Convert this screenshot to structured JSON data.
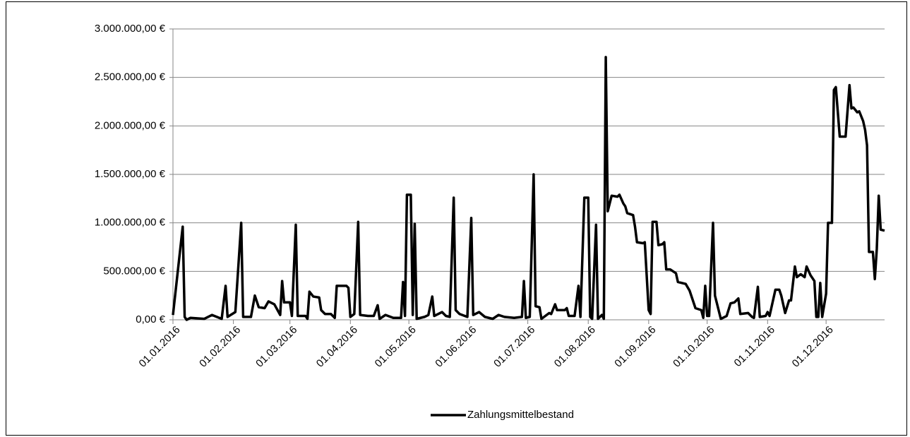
{
  "chart_data": {
    "type": "line",
    "x": [
      "01.01.2016",
      "06.01.2016",
      "07.01.2016",
      "08.01.2016",
      "10.01.2016",
      "17.01.2016",
      "21.01.2016",
      "26.01.2016",
      "28.01.2016",
      "29.01.2016",
      "02.02.2016",
      "05.02.2016",
      "06.02.2016",
      "10.02.2016",
      "12.02.2016",
      "14.02.2016",
      "17.02.2016",
      "19.02.2016",
      "22.02.2016",
      "25.02.2016",
      "26.02.2016",
      "27.02.2016",
      "01.03.2016",
      "02.03.2016",
      "04.03.2016",
      "05.03.2016",
      "09.03.2016",
      "10.03.2016",
      "11.03.2016",
      "13.03.2016",
      "16.03.2016",
      "17.03.2016",
      "19.03.2016",
      "22.03.2016",
      "24.03.2016",
      "25.03.2016",
      "30.03.2016",
      "31.03.2016",
      "01.04.2016",
      "03.04.2016",
      "05.04.2016",
      "06.04.2016",
      "10.04.2016",
      "13.04.2016",
      "15.04.2016",
      "16.04.2016",
      "19.04.2016",
      "23.04.2016",
      "27.04.2016",
      "28.04.2016",
      "29.04.2016",
      "30.04.2016",
      "02.05.2016",
      "03.05.2016",
      "04.05.2016",
      "05.05.2016",
      "09.05.2016",
      "11.05.2016",
      "13.05.2016",
      "14.05.2016",
      "18.05.2016",
      "20.05.2016",
      "22.05.2016",
      "24.05.2016",
      "25.05.2016",
      "27.05.2016",
      "31.05.2016",
      "02.06.2016",
      "03.06.2016",
      "06.06.2016",
      "09.06.2016",
      "13.06.2016",
      "16.06.2016",
      "19.06.2016",
      "24.06.2016",
      "28.06.2016",
      "29.06.2016",
      "30.06.2016",
      "02.07.2016",
      "04.07.2016",
      "05.07.2016",
      "07.07.2016",
      "08.07.2016",
      "12.07.2016",
      "13.07.2016",
      "15.07.2016",
      "16.07.2016",
      "20.07.2016",
      "21.07.2016",
      "22.07.2016",
      "25.07.2016",
      "27.07.2016",
      "28.07.2016",
      "30.07.2016",
      "01.08.2016",
      "02.08.2016",
      "03.08.2016",
      "05.08.2016",
      "06.08.2016",
      "08.08.2016",
      "09.08.2016",
      "10.08.2016",
      "11.08.2016",
      "13.08.2016",
      "16.08.2016",
      "17.08.2016",
      "19.08.2016",
      "20.08.2016",
      "21.08.2016",
      "24.08.2016",
      "25.08.2016",
      "26.08.2016",
      "29.08.2016",
      "30.08.2016",
      "01.09.2016",
      "02.09.2016",
      "03.09.2016",
      "05.09.2016",
      "06.09.2016",
      "08.09.2016",
      "09.09.2016",
      "10.09.2016",
      "12.09.2016",
      "15.09.2016",
      "16.09.2016",
      "18.09.2016",
      "20.09.2016",
      "22.09.2016",
      "25.09.2016",
      "28.09.2016",
      "29.09.2016",
      "30.09.2016",
      "01.10.2016",
      "02.10.2016",
      "04.10.2016",
      "05.10.2016",
      "08.10.2016",
      "11.10.2016",
      "13.10.2016",
      "15.10.2016",
      "17.10.2016",
      "18.10.2016",
      "22.10.2016",
      "24.10.2016",
      "25.10.2016",
      "27.10.2016",
      "28.10.2016",
      "31.10.2016",
      "01.11.2016",
      "02.11.2016",
      "05.11.2016",
      "07.11.2016",
      "08.11.2016",
      "10.11.2016",
      "12.11.2016",
      "13.11.2016",
      "15.11.2016",
      "16.11.2016",
      "18.11.2016",
      "20.11.2016",
      "21.11.2016",
      "23.11.2016",
      "25.11.2016",
      "26.11.2016",
      "27.11.2016",
      "28.11.2016",
      "29.11.2016",
      "01.12.2016",
      "02.12.2016",
      "04.12.2016",
      "05.12.2016",
      "06.12.2016",
      "08.12.2016",
      "11.12.2016",
      "13.12.2016",
      "14.12.2016",
      "15.12.2016",
      "17.12.2016",
      "18.12.2016",
      "20.12.2016",
      "21.12.2016",
      "22.12.2016",
      "23.12.2016",
      "25.12.2016",
      "26.12.2016",
      "27.12.2016",
      "28.12.2016",
      "29.12.2016",
      "31.12.2016"
    ],
    "series": [
      {
        "name": "Zahlungsmittelbestand",
        "color": "#000000",
        "values": [
          50000,
          960000,
          30000,
          0,
          20000,
          10000,
          50000,
          10000,
          350000,
          30000,
          80000,
          1000000,
          30000,
          30000,
          250000,
          130000,
          120000,
          190000,
          160000,
          50000,
          400000,
          180000,
          180000,
          40000,
          980000,
          40000,
          40000,
          10000,
          290000,
          240000,
          230000,
          100000,
          60000,
          60000,
          20000,
          350000,
          350000,
          330000,
          30000,
          60000,
          1010000,
          50000,
          40000,
          40000,
          150000,
          10000,
          50000,
          20000,
          20000,
          390000,
          40000,
          1290000,
          1290000,
          50000,
          990000,
          10000,
          30000,
          50000,
          240000,
          40000,
          80000,
          40000,
          30000,
          1260000,
          100000,
          60000,
          30000,
          1050000,
          50000,
          80000,
          30000,
          10000,
          50000,
          30000,
          20000,
          30000,
          400000,
          20000,
          30000,
          1500000,
          140000,
          130000,
          10000,
          70000,
          60000,
          160000,
          100000,
          100000,
          120000,
          40000,
          40000,
          350000,
          30000,
          1260000,
          1260000,
          30000,
          10000,
          980000,
          10000,
          50000,
          10000,
          2710000,
          1120000,
          1280000,
          1270000,
          1290000,
          1200000,
          1170000,
          1100000,
          1080000,
          960000,
          800000,
          790000,
          800000,
          100000,
          60000,
          1010000,
          1010000,
          770000,
          780000,
          800000,
          520000,
          520000,
          480000,
          390000,
          380000,
          370000,
          300000,
          120000,
          100000,
          20000,
          350000,
          40000,
          40000,
          1000000,
          250000,
          10000,
          40000,
          170000,
          180000,
          220000,
          60000,
          70000,
          30000,
          20000,
          340000,
          30000,
          40000,
          80000,
          40000,
          310000,
          310000,
          250000,
          70000,
          200000,
          200000,
          550000,
          440000,
          470000,
          440000,
          550000,
          460000,
          400000,
          30000,
          30000,
          380000,
          30000,
          270000,
          1000000,
          1000000,
          2370000,
          2400000,
          1890000,
          1890000,
          2420000,
          2180000,
          2190000,
          2140000,
          2150000,
          2050000,
          1960000,
          1800000,
          700000,
          700000,
          420000,
          730000,
          1280000,
          930000,
          920000
        ]
      }
    ],
    "xlim": [
      "01.01.2016",
      "31.12.2016"
    ],
    "xticks": [
      "01.01.2016",
      "01.02.2016",
      "01.03.2016",
      "01.04.2016",
      "01.05.2016",
      "01.06.2016",
      "01.07.2016",
      "01.08.2016",
      "01.09.2016",
      "01.10.2016",
      "01.11.2016",
      "01.12.2016"
    ],
    "ylim": [
      0,
      3000000
    ],
    "yticks": [
      {
        "value": 0,
        "label": "0,00 €"
      },
      {
        "value": 500000,
        "label": "500.000,00 €"
      },
      {
        "value": 1000000,
        "label": "1.000.000,00 €"
      },
      {
        "value": 1500000,
        "label": "1.500.000,00 €"
      },
      {
        "value": 2000000,
        "label": "2.000.000,00 €"
      },
      {
        "value": 2500000,
        "label": "2.500.000,00 €"
      },
      {
        "value": 3000000,
        "label": "3.000.000,00 €"
      }
    ],
    "grid": true,
    "legend": "bottom"
  }
}
